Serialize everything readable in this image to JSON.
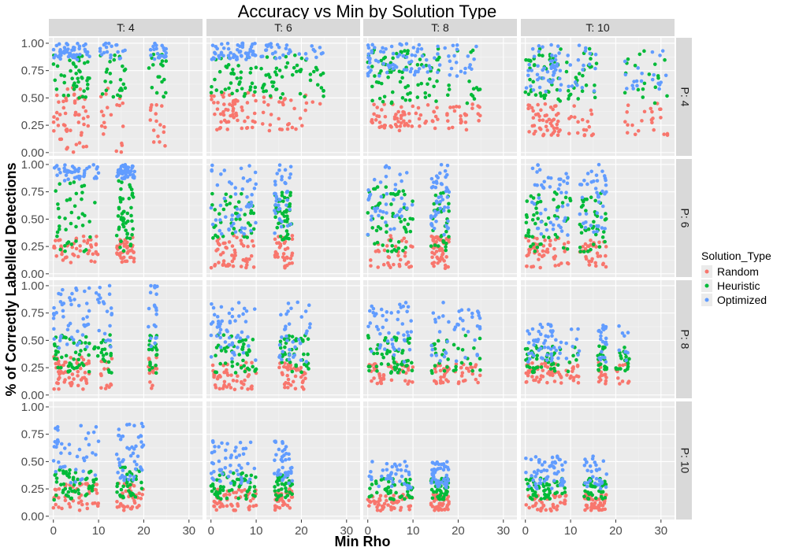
{
  "chart_data": {
    "type": "scatter",
    "title": "Accuracy vs Min by Solution Type",
    "xlabel": "Min Rho",
    "ylabel": "% of Correctly Labelled Detections",
    "xlim": [
      -1,
      33
    ],
    "ylim": [
      -0.03,
      1.05
    ],
    "x_ticks": [
      0,
      10,
      20,
      30
    ],
    "y_ticks": [
      0.0,
      0.25,
      0.5,
      0.75,
      1.0
    ],
    "x_tick_labels": [
      "0",
      "10",
      "20",
      "30"
    ],
    "y_tick_labels": [
      "0.00",
      "0.25",
      "0.50",
      "0.75",
      "1.00"
    ],
    "grid": true,
    "facet_cols": [
      "T: 4",
      "T: 6",
      "T: 8",
      "T: 10"
    ],
    "facet_rows": [
      "P: 4",
      "P: 6",
      "P: 8",
      "P: 10"
    ],
    "legend": {
      "title": "Solution_Type",
      "placement": "right",
      "entries": [
        {
          "name": "Random",
          "color": "#F8766D"
        },
        {
          "name": "Heuristic",
          "color": "#00BA38"
        },
        {
          "name": "Optimized",
          "color": "#619CFF"
        }
      ]
    },
    "series_colors": {
      "Random": "#F8766D",
      "Heuristic": "#00BA38",
      "Optimized": "#619CFF"
    },
    "panels": {
      "T: 4|P: 4": {
        "xclusters": [
          [
            0,
            8
          ],
          [
            10,
            16
          ],
          [
            21,
            25
          ]
        ],
        "Random": {
          "lo": 0.0,
          "hi": 0.6
        },
        "Heuristic": {
          "lo": 0.5,
          "hi": 0.9
        },
        "Optimized": {
          "lo": 0.85,
          "hi": 1.0
        }
      },
      "T: 6|P: 4": {
        "xclusters": [
          [
            0,
            10
          ],
          [
            11,
            18
          ],
          [
            18,
            25
          ]
        ],
        "Random": {
          "lo": 0.2,
          "hi": 0.55
        },
        "Heuristic": {
          "lo": 0.5,
          "hi": 0.9
        },
        "Optimized": {
          "lo": 0.85,
          "hi": 1.0
        }
      },
      "T: 8|P: 4": {
        "xclusters": [
          [
            0,
            10
          ],
          [
            10,
            16
          ],
          [
            17,
            25
          ]
        ],
        "Random": {
          "lo": 0.2,
          "hi": 0.45
        },
        "Heuristic": {
          "lo": 0.45,
          "hi": 0.95
        },
        "Optimized": {
          "lo": 0.7,
          "hi": 1.0
        }
      },
      "T: 10|P: 4": {
        "xclusters": [
          [
            0,
            8
          ],
          [
            9,
            16
          ],
          [
            22,
            32
          ]
        ],
        "Random": {
          "lo": 0.15,
          "hi": 0.45
        },
        "Heuristic": {
          "lo": 0.45,
          "hi": 0.95
        },
        "Optimized": {
          "lo": 0.55,
          "hi": 1.0
        }
      },
      "T: 4|P: 6": {
        "xclusters": [
          [
            0,
            10
          ],
          [
            14,
            18
          ]
        ],
        "Random": {
          "lo": 0.1,
          "hi": 0.35
        },
        "Heuristic": {
          "lo": 0.2,
          "hi": 0.85
        },
        "Optimized": {
          "lo": 0.85,
          "hi": 1.0
        }
      },
      "T: 6|P: 6": {
        "xclusters": [
          [
            0,
            10
          ],
          [
            14,
            18
          ]
        ],
        "Random": {
          "lo": 0.05,
          "hi": 0.35
        },
        "Heuristic": {
          "lo": 0.3,
          "hi": 0.75
        },
        "Optimized": {
          "lo": 0.35,
          "hi": 1.0
        }
      },
      "T: 8|P: 6": {
        "xclusters": [
          [
            0,
            10
          ],
          [
            14,
            18
          ]
        ],
        "Random": {
          "lo": 0.05,
          "hi": 0.35
        },
        "Heuristic": {
          "lo": 0.2,
          "hi": 0.8
        },
        "Optimized": {
          "lo": 0.35,
          "hi": 1.0
        }
      },
      "T: 10|P: 6": {
        "xclusters": [
          [
            0,
            10
          ],
          [
            12,
            18
          ]
        ],
        "Random": {
          "lo": 0.05,
          "hi": 0.35
        },
        "Heuristic": {
          "lo": 0.2,
          "hi": 0.75
        },
        "Optimized": {
          "lo": 0.35,
          "hi": 1.0
        }
      },
      "T: 4|P: 8": {
        "xclusters": [
          [
            0,
            8
          ],
          [
            9,
            13
          ],
          [
            21,
            23
          ]
        ],
        "Random": {
          "lo": 0.05,
          "hi": 0.35
        },
        "Heuristic": {
          "lo": 0.2,
          "hi": 0.55
        },
        "Optimized": {
          "lo": 0.4,
          "hi": 1.0
        }
      },
      "T: 6|P: 8": {
        "xclusters": [
          [
            0,
            10
          ],
          [
            15,
            18
          ],
          [
            18,
            22
          ]
        ],
        "Random": {
          "lo": 0.05,
          "hi": 0.3
        },
        "Heuristic": {
          "lo": 0.2,
          "hi": 0.55
        },
        "Optimized": {
          "lo": 0.3,
          "hi": 0.85
        }
      },
      "T: 8|P: 8": {
        "xclusters": [
          [
            0,
            10
          ],
          [
            14,
            18
          ],
          [
            19,
            25
          ]
        ],
        "Random": {
          "lo": 0.1,
          "hi": 0.3
        },
        "Heuristic": {
          "lo": 0.2,
          "hi": 0.55
        },
        "Optimized": {
          "lo": 0.3,
          "hi": 0.85
        }
      },
      "T: 10|P: 8": {
        "xclusters": [
          [
            0,
            8
          ],
          [
            9,
            12
          ],
          [
            16,
            18
          ],
          [
            20,
            23
          ]
        ],
        "Random": {
          "lo": 0.1,
          "hi": 0.3
        },
        "Heuristic": {
          "lo": 0.2,
          "hi": 0.45
        },
        "Optimized": {
          "lo": 0.3,
          "hi": 0.65
        }
      },
      "T: 4|P: 10": {
        "xclusters": [
          [
            0,
            10
          ],
          [
            14,
            20
          ]
        ],
        "Random": {
          "lo": 0.05,
          "hi": 0.3
        },
        "Heuristic": {
          "lo": 0.15,
          "hi": 0.45
        },
        "Optimized": {
          "lo": 0.3,
          "hi": 0.85
        }
      },
      "T: 6|P: 10": {
        "xclusters": [
          [
            0,
            10
          ],
          [
            14,
            18
          ]
        ],
        "Random": {
          "lo": 0.05,
          "hi": 0.25
        },
        "Heuristic": {
          "lo": 0.15,
          "hi": 0.4
        },
        "Optimized": {
          "lo": 0.3,
          "hi": 0.7
        }
      },
      "T: 8|P: 10": {
        "xclusters": [
          [
            0,
            10
          ],
          [
            14,
            18
          ]
        ],
        "Random": {
          "lo": 0.05,
          "hi": 0.2
        },
        "Heuristic": {
          "lo": 0.15,
          "hi": 0.35
        },
        "Optimized": {
          "lo": 0.25,
          "hi": 0.5
        }
      },
      "T: 10|P: 10": {
        "xclusters": [
          [
            0,
            9
          ],
          [
            13,
            18
          ]
        ],
        "Random": {
          "lo": 0.05,
          "hi": 0.2
        },
        "Heuristic": {
          "lo": 0.15,
          "hi": 0.35
        },
        "Optimized": {
          "lo": 0.25,
          "hi": 0.55
        }
      }
    }
  }
}
